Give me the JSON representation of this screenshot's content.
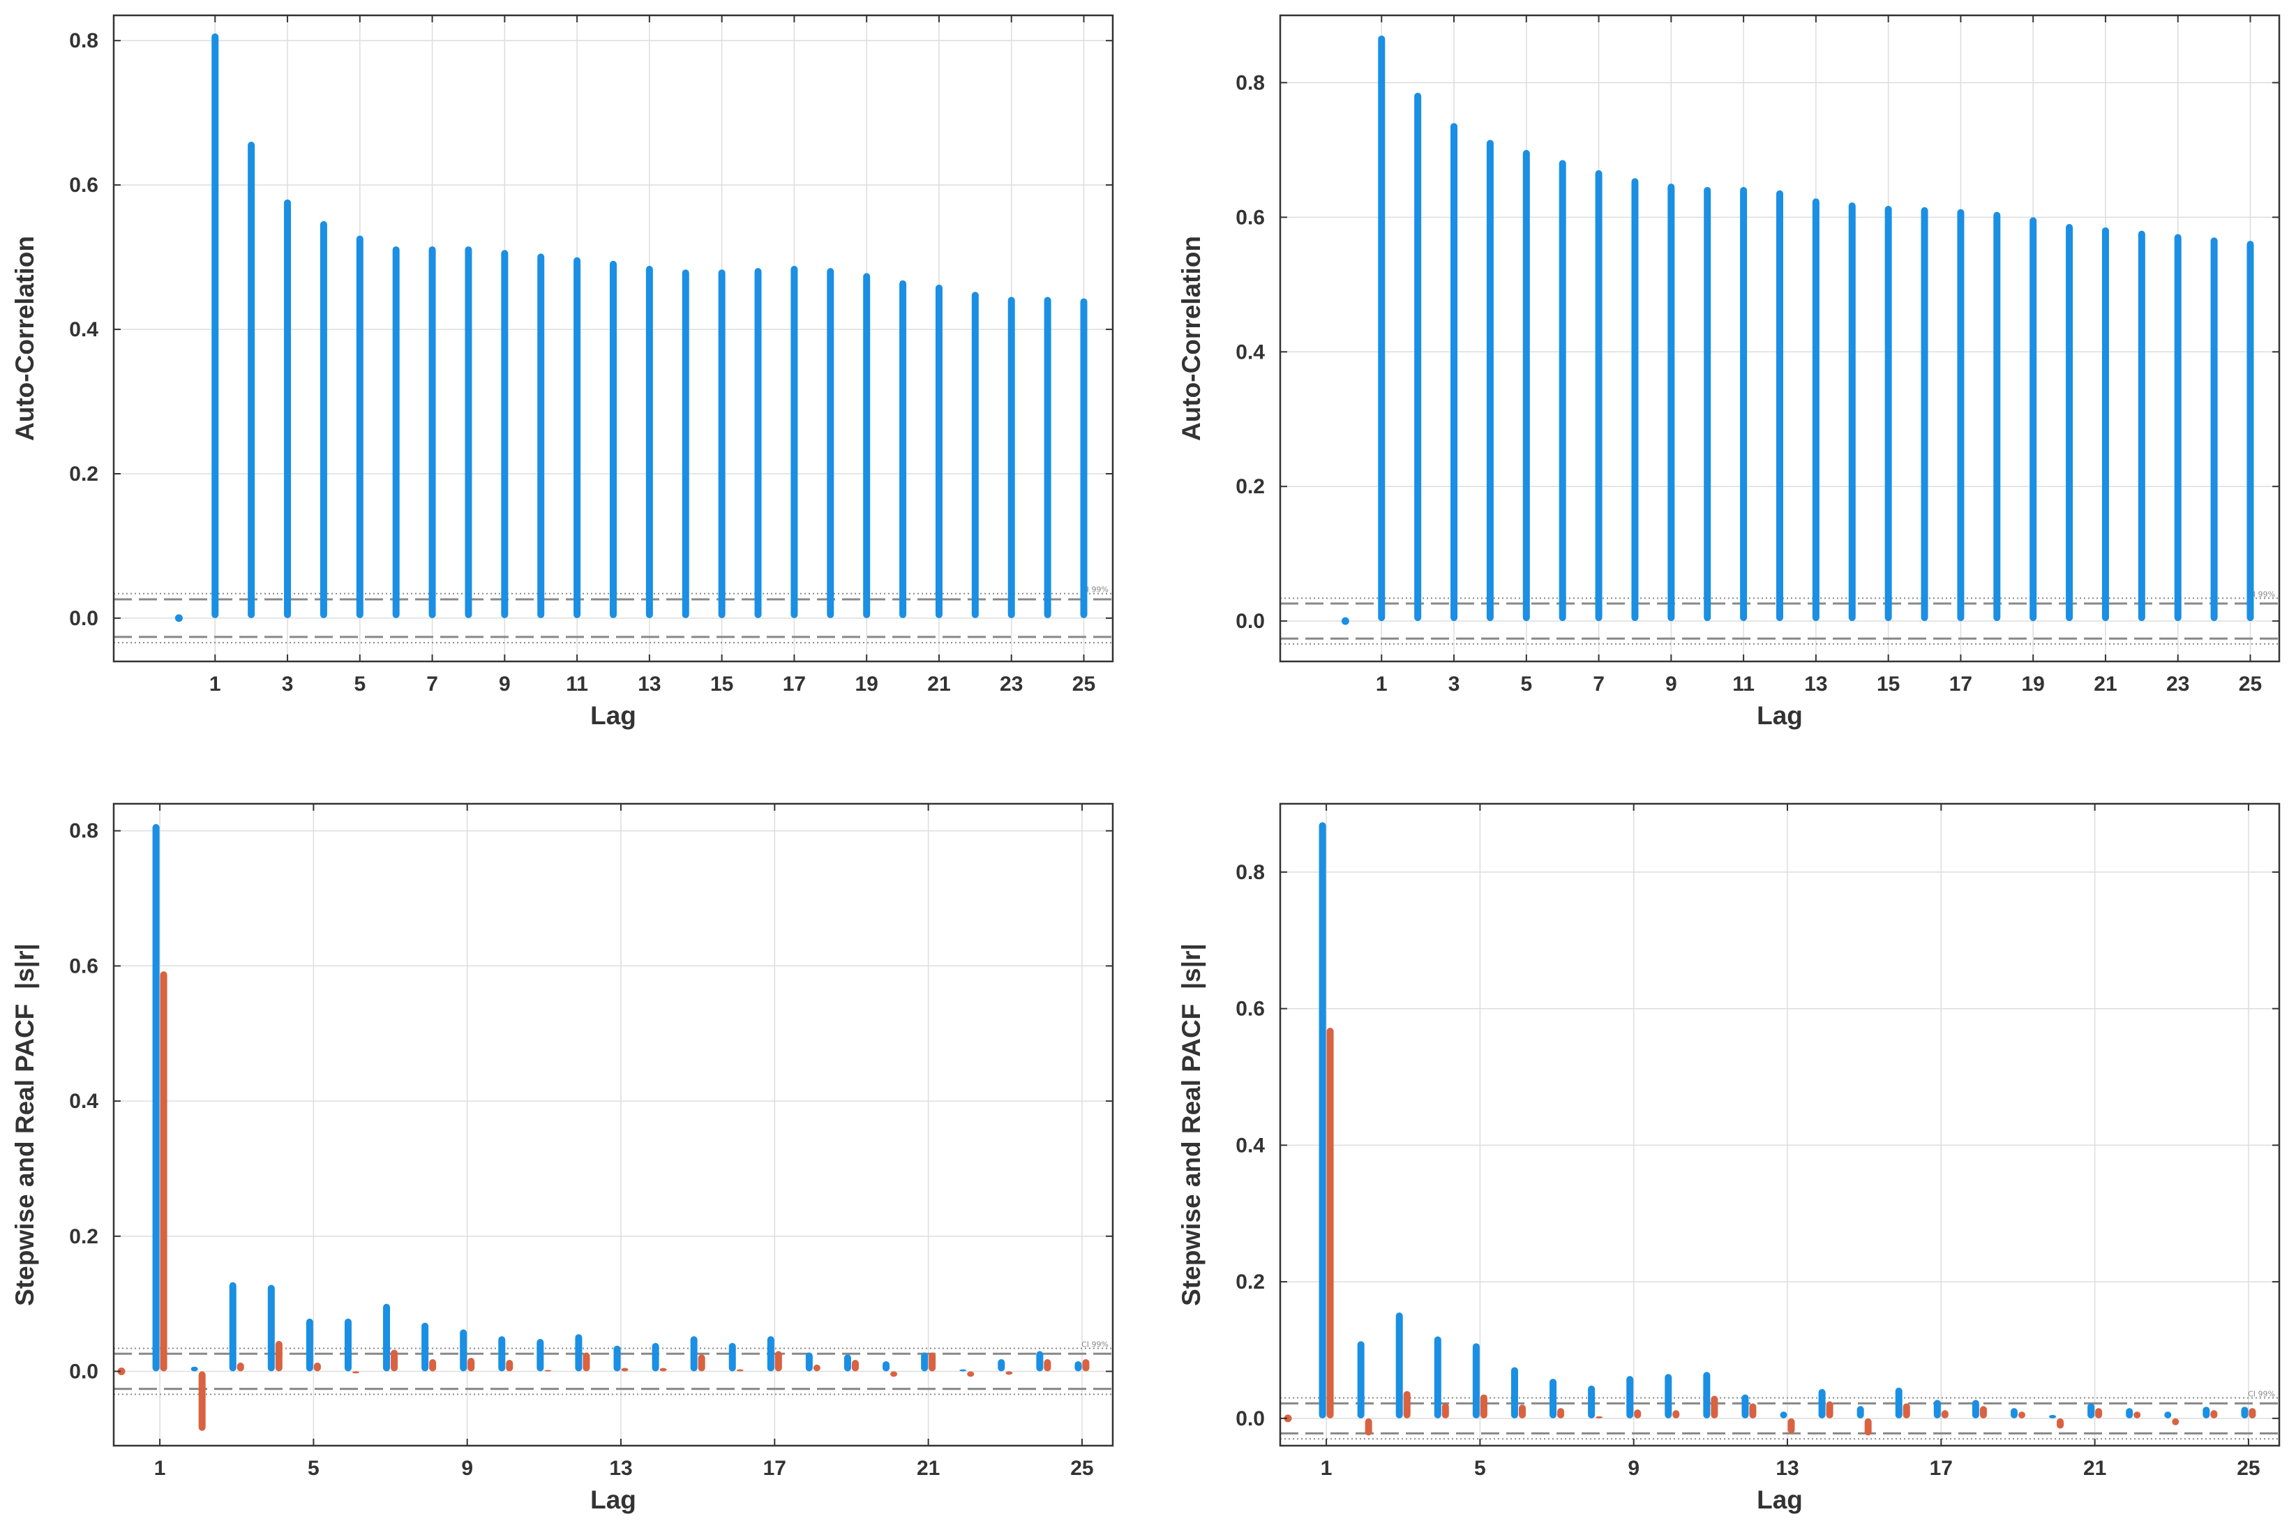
{
  "colors": {
    "blue": "#1a8fe3",
    "orange": "#d96241",
    "grid": "#dddddd",
    "frame": "#333333",
    "ci_line": "#888888"
  },
  "chart_data": [
    {
      "type": "bar",
      "kind": "stem",
      "panel": "top-left",
      "xlabel": "Lag",
      "ylabel": "Auto-Correlation",
      "xlim": [
        -1.8,
        25.8
      ],
      "ylim": [
        -0.06,
        0.835
      ],
      "xticks": [
        1,
        3,
        5,
        7,
        9,
        11,
        13,
        15,
        17,
        19,
        21,
        23,
        25
      ],
      "yticks": [
        0.0,
        0.2,
        0.4,
        0.6,
        0.8
      ],
      "grid": true,
      "ci": {
        "inner": 0.026,
        "outer": 0.034,
        "label": "CI 99%"
      },
      "series": [
        {
          "color": "blue",
          "offset": 0,
          "zero_dot": true,
          "x": [
            1,
            2,
            3,
            4,
            5,
            6,
            7,
            8,
            9,
            10,
            11,
            12,
            13,
            14,
            15,
            16,
            17,
            18,
            19,
            20,
            21,
            22,
            23,
            24,
            25
          ],
          "values": [
            0.81,
            0.66,
            0.58,
            0.55,
            0.53,
            0.515,
            0.515,
            0.515,
            0.51,
            0.505,
            0.5,
            0.495,
            0.488,
            0.483,
            0.483,
            0.485,
            0.488,
            0.485,
            0.478,
            0.468,
            0.462,
            0.452,
            0.445,
            0.445,
            0.443
          ]
        }
      ]
    },
    {
      "type": "bar",
      "kind": "stem",
      "panel": "top-right",
      "xlabel": "Lag",
      "ylabel": "Auto-Correlation",
      "xlim": [
        -1.8,
        25.8
      ],
      "ylim": [
        -0.06,
        0.9
      ],
      "xticks": [
        1,
        3,
        5,
        7,
        9,
        11,
        13,
        15,
        17,
        19,
        21,
        23,
        25
      ],
      "yticks": [
        0.0,
        0.2,
        0.4,
        0.6,
        0.8
      ],
      "grid": true,
      "ci": {
        "inner": 0.026,
        "outer": 0.034,
        "label": "CI 99%"
      },
      "series": [
        {
          "color": "blue",
          "offset": 0,
          "zero_dot": true,
          "x": [
            1,
            2,
            3,
            4,
            5,
            6,
            7,
            8,
            9,
            10,
            11,
            12,
            13,
            14,
            15,
            16,
            17,
            18,
            19,
            20,
            21,
            22,
            23,
            24,
            25
          ],
          "values": [
            0.87,
            0.785,
            0.74,
            0.715,
            0.7,
            0.685,
            0.67,
            0.658,
            0.65,
            0.645,
            0.645,
            0.64,
            0.628,
            0.622,
            0.617,
            0.615,
            0.612,
            0.608,
            0.6,
            0.59,
            0.585,
            0.58,
            0.575,
            0.57,
            0.565
          ]
        }
      ]
    },
    {
      "type": "bar",
      "kind": "stem",
      "panel": "bottom-left",
      "xlabel": "Lag",
      "ylabel": "Stepwise and Real PACF  |s|r|",
      "xlim": [
        -0.2,
        25.8
      ],
      "ylim": [
        -0.11,
        0.84
      ],
      "xticks": [
        1,
        5,
        9,
        13,
        17,
        21,
        25
      ],
      "yticks": [
        0.0,
        0.2,
        0.4,
        0.6,
        0.8
      ],
      "grid": true,
      "ci": {
        "inner": 0.026,
        "outer": 0.034,
        "label": "CI 99%"
      },
      "series": [
        {
          "color": "blue",
          "offset": -0.1,
          "zero_dot": false,
          "x": [
            1,
            2,
            3,
            4,
            5,
            6,
            7,
            8,
            9,
            10,
            11,
            12,
            13,
            14,
            15,
            16,
            17,
            18,
            19,
            20,
            21,
            22,
            23,
            24,
            25
          ],
          "values": [
            0.81,
            0.007,
            0.132,
            0.128,
            0.078,
            0.078,
            0.1,
            0.072,
            0.062,
            0.052,
            0.048,
            0.055,
            0.038,
            0.042,
            0.052,
            0.042,
            0.052,
            0.028,
            0.025,
            0.015,
            0.028,
            0.003,
            0.018,
            0.03,
            0.015
          ]
        },
        {
          "color": "orange",
          "offset": 0.1,
          "zero_dot": true,
          "x": [
            1,
            2,
            3,
            4,
            5,
            6,
            7,
            8,
            9,
            10,
            11,
            12,
            13,
            14,
            15,
            16,
            17,
            18,
            19,
            20,
            21,
            22,
            23,
            24,
            25
          ],
          "values": [
            0.592,
            -0.088,
            0.013,
            0.045,
            0.013,
            -0.003,
            0.032,
            0.018,
            0.02,
            0.017,
            0.002,
            0.028,
            0.005,
            0.005,
            0.025,
            0.003,
            0.03,
            0.01,
            0.017,
            -0.008,
            0.028,
            -0.008,
            -0.005,
            0.018,
            0.018
          ]
        }
      ]
    },
    {
      "type": "bar",
      "kind": "stem",
      "panel": "bottom-right",
      "xlabel": "Lag",
      "ylabel": "Stepwise and Real PACF  |s|r|",
      "xlim": [
        -0.2,
        25.8
      ],
      "ylim": [
        -0.04,
        0.9
      ],
      "xticks": [
        1,
        5,
        9,
        13,
        17,
        21,
        25
      ],
      "yticks": [
        0.0,
        0.2,
        0.4,
        0.6,
        0.8
      ],
      "grid": true,
      "ci": {
        "inner": 0.022,
        "outer": 0.03,
        "label": "CI 99%"
      },
      "series": [
        {
          "color": "blue",
          "offset": -0.1,
          "zero_dot": false,
          "x": [
            1,
            2,
            3,
            4,
            5,
            6,
            7,
            8,
            9,
            10,
            11,
            12,
            13,
            14,
            15,
            16,
            17,
            18,
            19,
            20,
            21,
            22,
            23,
            24,
            25
          ],
          "values": [
            0.873,
            0.113,
            0.155,
            0.12,
            0.11,
            0.075,
            0.058,
            0.048,
            0.062,
            0.065,
            0.068,
            0.035,
            0.01,
            0.043,
            0.018,
            0.045,
            0.027,
            0.027,
            0.015,
            0.005,
            0.022,
            0.015,
            0.01,
            0.017,
            0.017
          ]
        },
        {
          "color": "orange",
          "offset": 0.1,
          "zero_dot": true,
          "x": [
            1,
            2,
            3,
            4,
            5,
            6,
            7,
            8,
            9,
            10,
            11,
            12,
            13,
            14,
            15,
            16,
            17,
            18,
            19,
            20,
            21,
            22,
            23,
            24,
            25
          ],
          "values": [
            0.572,
            -0.025,
            0.04,
            0.022,
            0.035,
            0.02,
            0.015,
            0.003,
            0.013,
            0.012,
            0.033,
            0.022,
            -0.022,
            0.025,
            -0.025,
            0.022,
            0.012,
            0.018,
            0.01,
            -0.015,
            0.015,
            0.01,
            -0.01,
            0.012,
            0.015
          ]
        }
      ]
    }
  ]
}
